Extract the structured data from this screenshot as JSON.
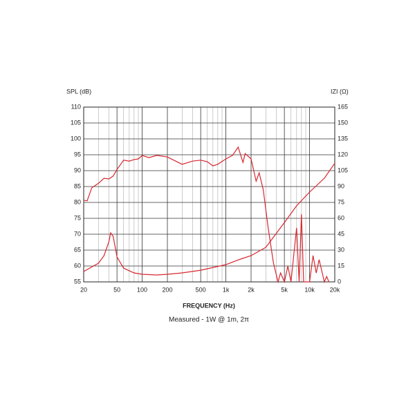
{
  "chart_data": {
    "type": "line",
    "y_label": "SPL (dB)",
    "y2_label": "IZI (Ω)",
    "x_label": "FREQUENCY (Hz)",
    "subtitle": "Measured - 1W @ 1m, 2π",
    "log_x": true,
    "grid": true,
    "xlim": [
      20,
      20000
    ],
    "xticks": [
      20,
      50,
      100,
      200,
      500,
      {
        "value": 1000,
        "label": "1k"
      },
      {
        "value": 2000,
        "label": "2k"
      },
      {
        "value": 5000,
        "label": "5k"
      },
      {
        "value": 10000,
        "label": "10k"
      },
      {
        "value": 20000,
        "label": "20k"
      }
    ],
    "xminorticks": [
      30,
      40,
      60,
      70,
      80,
      90,
      300,
      400,
      600,
      700,
      800,
      900,
      3000,
      4000,
      6000,
      7000,
      8000,
      9000
    ],
    "ylim": [
      55,
      110
    ],
    "yticks": [
      55,
      60,
      65,
      70,
      75,
      80,
      85,
      90,
      95,
      100,
      105,
      110
    ],
    "y2lim": [
      0,
      165
    ],
    "y2ticks": [
      0,
      15,
      30,
      45,
      60,
      75,
      90,
      105,
      120,
      135,
      150,
      165
    ],
    "series": [
      {
        "name": "SPL",
        "color": "#d7262f",
        "x": [
          20,
          22,
          25,
          30,
          35,
          40,
          45,
          50,
          60,
          70,
          80,
          90,
          100,
          120,
          150,
          200,
          300,
          400,
          500,
          600,
          700,
          800,
          1000,
          1200,
          1400,
          1600,
          1700,
          2000,
          2300,
          2500,
          2800,
          3200,
          3700,
          4200,
          4500,
          5000,
          5500,
          6000,
          7000,
          7500,
          8000,
          8500,
          10000,
          11000,
          12000,
          13000,
          15000,
          16000,
          17000
        ],
        "values": [
          80.7,
          80.5,
          84.6,
          86,
          87.6,
          87.4,
          88.3,
          90.4,
          93.3,
          93,
          93.5,
          93.7,
          94.8,
          94.1,
          94.8,
          94.3,
          92,
          93,
          93.3,
          92.8,
          91.5,
          92,
          93.7,
          94.8,
          97.4,
          92.6,
          95.4,
          93.7,
          86.7,
          89.3,
          83.9,
          72,
          61,
          55,
          57.8,
          55,
          60,
          55,
          72,
          55,
          76.3,
          55,
          55,
          63.3,
          57.8,
          62,
          55,
          56.7,
          55
        ]
      },
      {
        "name": "Impedance",
        "color": "#d7262f",
        "axis": "y2",
        "x": [
          20,
          30,
          35,
          40,
          42,
          45,
          50,
          60,
          80,
          100,
          150,
          200,
          300,
          500,
          1000,
          1500,
          2000,
          3000,
          5000,
          7000,
          10000,
          15000,
          20000
        ],
        "values": [
          9.8,
          17.6,
          24.8,
          37.8,
          46.3,
          43,
          23.5,
          13,
          8.5,
          7.2,
          6.5,
          7.2,
          8.5,
          11,
          16.3,
          21.5,
          24.8,
          32.6,
          56,
          71.8,
          84.8,
          97.8,
          112
        ]
      }
    ]
  }
}
